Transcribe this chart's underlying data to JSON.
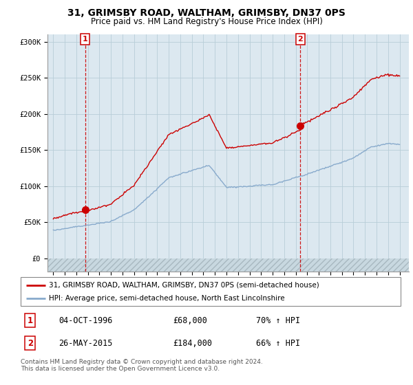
{
  "title": "31, GRIMSBY ROAD, WALTHAM, GRIMSBY, DN37 0PS",
  "subtitle": "Price paid vs. HM Land Registry's House Price Index (HPI)",
  "legend_line1": "31, GRIMSBY ROAD, WALTHAM, GRIMSBY, DN37 0PS (semi-detached house)",
  "legend_line2": "HPI: Average price, semi-detached house, North East Lincolnshire",
  "transaction1_date": "04-OCT-1996",
  "transaction1_price": "£68,000",
  "transaction1_hpi": "70% ↑ HPI",
  "transaction2_date": "26-MAY-2015",
  "transaction2_price": "£184,000",
  "transaction2_hpi": "66% ↑ HPI",
  "footer": "Contains HM Land Registry data © Crown copyright and database right 2024.\nThis data is licensed under the Open Government Licence v3.0.",
  "property_color": "#cc0000",
  "hpi_color": "#88aacc",
  "transaction1_x": 1996.75,
  "transaction1_y": 68000,
  "transaction2_x": 2015.4,
  "transaction2_y": 184000,
  "ylim_min": -18000,
  "ylim_max": 310000,
  "xlim_min": 1993.5,
  "xlim_max": 2024.8,
  "yticks": [
    0,
    50000,
    100000,
    150000,
    200000,
    250000,
    300000
  ],
  "ytick_labels": [
    "£0",
    "£50K",
    "£100K",
    "£150K",
    "£200K",
    "£250K",
    "£300K"
  ],
  "xticks": [
    1994,
    1995,
    1996,
    1997,
    1998,
    1999,
    2000,
    2001,
    2002,
    2003,
    2004,
    2005,
    2006,
    2007,
    2008,
    2009,
    2010,
    2011,
    2012,
    2013,
    2014,
    2015,
    2016,
    2017,
    2018,
    2019,
    2020,
    2021,
    2022,
    2023,
    2024
  ],
  "plot_bg_color": "#dce8f0",
  "background_color": "#ffffff",
  "grid_color": "#b8cdd8",
  "hatch_color": "#b8ccd8"
}
